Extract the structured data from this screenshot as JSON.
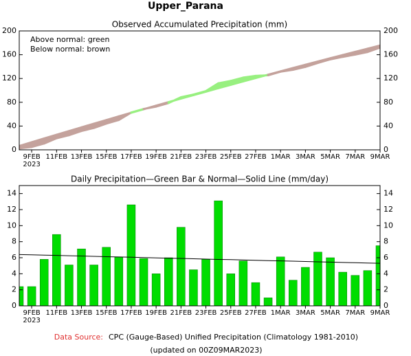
{
  "title": "Upper_Parana",
  "footer": {
    "source_label": "Data Source:",
    "source_text": "CPC (Gauge-Based) Unified Precipitation (Climatology 1981-2010)",
    "updated": "(updated on 00Z09MAR2023)"
  },
  "chart_data": [
    {
      "type": "band",
      "title": "Observed Accumulated Precipitation (mm)",
      "annotations": [
        "Above normal: green",
        "Below normal: brown"
      ],
      "above_color": "#98f080",
      "below_color": "#c4a29c",
      "categories": [
        null,
        "9FEB",
        null,
        "11FEB",
        null,
        "13FEB",
        null,
        "15FEB",
        null,
        "17FEB",
        null,
        "19FEB",
        null,
        "21FEB",
        null,
        "23FEB",
        null,
        "25FEB",
        null,
        "27FEB",
        null,
        "1MAR",
        null,
        "3MAR",
        null,
        "5MAR",
        null,
        "7MAR",
        null,
        "9MAR"
      ],
      "year_label": "2023",
      "series": [
        {
          "name": "Observed",
          "values": [
            2.4,
            4.8,
            10.6,
            19.5,
            24.6,
            31.7,
            36.8,
            44.1,
            50.2,
            62.8,
            68.7,
            72.7,
            78.7,
            88.5,
            93.0,
            98.8,
            111.9,
            115.9,
            121.5,
            124.4,
            125.4,
            131.5,
            134.7,
            139.5,
            146.2,
            152.2,
            156.4,
            160.2,
            164.6,
            172.1
          ]
        },
        {
          "name": "Normal",
          "values": [
            6.4,
            12.76,
            19.08,
            25.37,
            31.62,
            37.83,
            44.0,
            50.13,
            56.23,
            62.29,
            68.31,
            74.29,
            80.23,
            86.14,
            92.01,
            97.84,
            103.63,
            109.39,
            115.11,
            120.79,
            126.43,
            132.03,
            137.6,
            143.13,
            148.62,
            154.07,
            159.48,
            164.86,
            170.2,
            175.5
          ]
        }
      ],
      "ylim": [
        0,
        200
      ],
      "yticks": [
        0,
        40,
        80,
        120,
        160,
        200
      ]
    },
    {
      "type": "bar",
      "title": "Daily Precipitation—Green Bar & Normal—Solid Line (mm/day)",
      "categories": [
        null,
        "9FEB",
        null,
        "11FEB",
        null,
        "13FEB",
        null,
        "15FEB",
        null,
        "17FEB",
        null,
        "19FEB",
        null,
        "21FEB",
        null,
        "23FEB",
        null,
        "25FEB",
        null,
        "27FEB",
        null,
        "1MAR",
        null,
        "3MAR",
        null,
        "5MAR",
        null,
        "7MAR",
        null,
        "9MAR"
      ],
      "year_label": "2023",
      "series": [
        {
          "name": "Daily",
          "color": "#00dd00",
          "values": [
            2.4,
            2.4,
            5.8,
            8.9,
            5.1,
            7.1,
            5.1,
            7.3,
            6.1,
            12.6,
            5.9,
            4.0,
            6.0,
            9.8,
            4.5,
            5.8,
            13.1,
            4.0,
            5.6,
            2.9,
            1.0,
            6.1,
            3.2,
            4.8,
            6.7,
            6.0,
            4.2,
            3.8,
            4.4,
            7.5
          ]
        },
        {
          "name": "Normal",
          "color": "#000000",
          "values": [
            6.4,
            6.36,
            6.32,
            6.29,
            6.25,
            6.21,
            6.17,
            6.13,
            6.1,
            6.06,
            6.02,
            5.98,
            5.94,
            5.91,
            5.87,
            5.83,
            5.79,
            5.76,
            5.72,
            5.68,
            5.64,
            5.6,
            5.57,
            5.53,
            5.49,
            5.45,
            5.41,
            5.38,
            5.34,
            5.3
          ]
        }
      ],
      "ylim": [
        0,
        15
      ],
      "yticks": [
        0,
        2,
        4,
        6,
        8,
        10,
        12,
        14
      ]
    }
  ]
}
